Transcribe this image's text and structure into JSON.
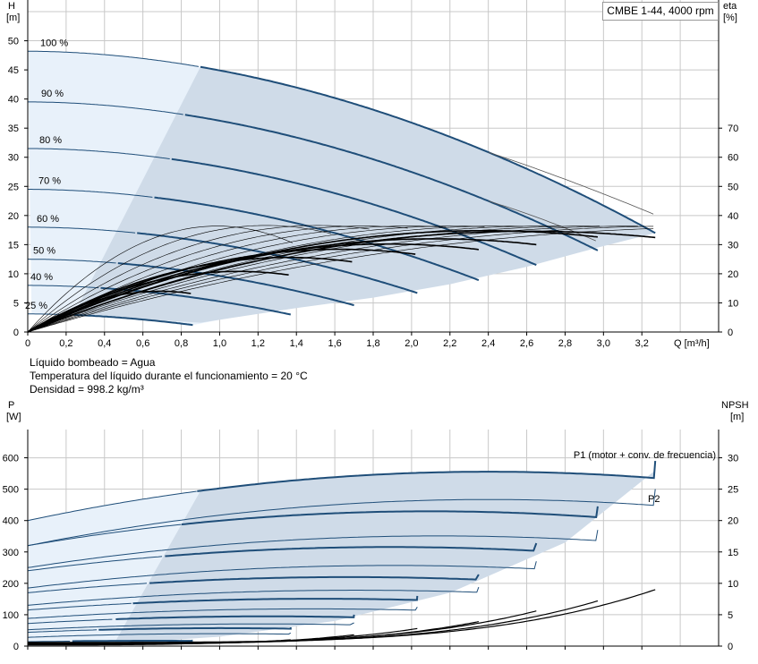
{
  "header": {
    "title": "CMBE 1-44, 4000 rpm"
  },
  "info": {
    "line1": "Líquido bombeado = Agua",
    "line2": "Temperatura del líquido durante el funcionamiento = 20 °C",
    "line3": "Densidad = 998.2 kg/m³"
  },
  "colors": {
    "curve_blue": "#1f4e79",
    "envelope_fill": "#cfdbe8",
    "light_fill": "#e8f1fa",
    "grid": "#c8c8c8",
    "eff_line": "#000000"
  },
  "chart_data": [
    {
      "type": "line",
      "name": "QH",
      "xlabel": "Q [m³/h]",
      "ylabel": "H\n[m]",
      "y2label": "eta\n[%]",
      "xlim": [
        0,
        3.6
      ],
      "ylim": [
        0,
        57
      ],
      "y2lim": [
        0,
        114
      ],
      "x_ticks": [
        0,
        0.2,
        0.4,
        0.6,
        0.8,
        1.0,
        1.2,
        1.4,
        1.6,
        1.8,
        2.0,
        2.2,
        2.4,
        2.6,
        2.8,
        3.0,
        3.2
      ],
      "x_tick_labels": [
        "0",
        "0,2",
        "0,4",
        "0,6",
        "0,8",
        "1,0",
        "1,2",
        "1,4",
        "1,6",
        "1,8",
        "2,0",
        "2,2",
        "2,4",
        "2,6",
        "2,8",
        "3,0",
        "3,2"
      ],
      "y_ticks": [
        0,
        5,
        10,
        15,
        20,
        25,
        30,
        35,
        40,
        45,
        50
      ],
      "y2_ticks": [
        0,
        10,
        20,
        30,
        40,
        50,
        60,
        70
      ],
      "grid": true,
      "speed_curves": [
        {
          "label": "100 %",
          "H0": 48.2,
          "Qmax": 3.27,
          "Hend": 17.0,
          "Qlight": 0.9
        },
        {
          "label": "90 %",
          "H0": 39.5,
          "Qmax": 2.97,
          "Hend": 14.0,
          "Qlight": 0.82
        },
        {
          "label": "80 %",
          "H0": 31.5,
          "Qmax": 2.65,
          "Hend": 11.5,
          "Qlight": 0.75
        },
        {
          "label": "70 %",
          "H0": 24.5,
          "Qmax": 2.35,
          "Hend": 8.9,
          "Qlight": 0.66
        },
        {
          "label": "60 %",
          "H0": 18.0,
          "Qmax": 2.03,
          "Hend": 6.7,
          "Qlight": 0.57
        },
        {
          "label": "50 %",
          "H0": 12.5,
          "Qmax": 1.7,
          "Hend": 4.6,
          "Qlight": 0.47
        },
        {
          "label": "40 %",
          "H0": 8.0,
          "Qmax": 1.37,
          "Hend": 3.0,
          "Qlight": 0.38
        },
        {
          "label": "25 %",
          "H0": 3.1,
          "Qmax": 0.86,
          "Hend": 1.2,
          "Qlight": 0.24
        }
      ],
      "light_curves": [
        {
          "H0": 48.2,
          "Qend": 3.27,
          "Hend": 13.5
        },
        {
          "H0": 39.5,
          "Qend": 2.97,
          "Hend": 12.0
        }
      ],
      "eta_thick": [
        {
          "Qend": 0.86,
          "eta_end": 11
        },
        {
          "Qend": 1.37,
          "eta_end": 17
        },
        {
          "Qend": 1.7,
          "eta_end": 21
        },
        {
          "Qend": 2.03,
          "eta_end": 23
        },
        {
          "Qend": 2.35,
          "eta_end": 24
        },
        {
          "Qend": 2.65,
          "eta_end": 25
        },
        {
          "Qend": 2.97,
          "eta_end": 27
        },
        {
          "Qend": 3.27,
          "eta_end": 26
        }
      ],
      "eta_thin_peaks": [
        {
          "Qpk": 0.62,
          "Hpk": 18.2
        },
        {
          "Qpk": 0.78,
          "Hpk": 18.3
        },
        {
          "Qpk": 0.95,
          "Hpk": 18.3
        },
        {
          "Qpk": 1.1,
          "Hpk": 18.2
        },
        {
          "Qpk": 1.25,
          "Hpk": 18.2
        },
        {
          "Qpk": 1.4,
          "Hpk": 18.2
        },
        {
          "Qpk": 1.55,
          "Hpk": 18.2
        },
        {
          "Qpk": 1.7,
          "Hpk": 18.2
        },
        {
          "Qpk": 1.85,
          "Hpk": 18.2
        },
        {
          "Qpk": 2.0,
          "Hpk": 18.2
        },
        {
          "Qpk": 2.15,
          "Hpk": 18.2
        },
        {
          "Qpk": 2.3,
          "Hpk": 18.0
        }
      ]
    },
    {
      "type": "line",
      "name": "P/NPSH",
      "ylabel": "P\n[W]",
      "y2label": "NPSH\n[m]",
      "xlim": [
        0,
        3.6
      ],
      "ylim": [
        0,
        690
      ],
      "y2lim": [
        0,
        34.5
      ],
      "y_ticks": [
        0,
        100,
        200,
        300,
        400,
        500,
        600
      ],
      "y2_ticks": [
        0,
        5,
        10,
        15,
        20,
        25,
        30
      ],
      "grid": true,
      "p1_label": "P1 (motor + conv. de frecuencia)",
      "p2_label": "P2",
      "p1_curves": [
        {
          "Qmax": 3.27,
          "P0": 400,
          "Pmid": 612,
          "Pend": 590
        },
        {
          "Qmax": 2.97,
          "P0": 320,
          "Pmid": 475,
          "Pend": 445
        },
        {
          "Qmax": 2.65,
          "P0": 240,
          "Pmid": 346,
          "Pend": 328
        },
        {
          "Qmax": 2.35,
          "P0": 170,
          "Pmid": 240,
          "Pend": 228
        },
        {
          "Qmax": 2.03,
          "P0": 115,
          "Pmid": 163,
          "Pend": 160
        },
        {
          "Qmax": 1.7,
          "P0": 72,
          "Pmid": 103,
          "Pend": 100
        },
        {
          "Qmax": 1.37,
          "P0": 44,
          "Pmid": 62,
          "Pend": 60
        },
        {
          "Qmax": 0.86,
          "P0": 14,
          "Pmid": 18,
          "Pend": 18
        }
      ],
      "p2_curves": [
        {
          "Qmax": 3.27,
          "P0": 320,
          "Pmid": 520,
          "Pend": 500
        },
        {
          "Qmax": 2.97,
          "P0": 250,
          "Pmid": 390,
          "Pend": 370
        },
        {
          "Qmax": 2.65,
          "P0": 185,
          "Pmid": 285,
          "Pend": 270
        },
        {
          "Qmax": 2.35,
          "P0": 130,
          "Pmid": 196,
          "Pend": 188
        },
        {
          "Qmax": 2.03,
          "P0": 88,
          "Pmid": 130,
          "Pend": 125
        },
        {
          "Qmax": 1.7,
          "P0": 52,
          "Pmid": 78,
          "Pend": 74
        },
        {
          "Qmax": 1.37,
          "P0": 28,
          "Pmid": 44,
          "Pend": 42
        },
        {
          "Qmax": 0.86,
          "P0": 8,
          "Pmid": 12,
          "Pend": 12
        }
      ],
      "npsh_curves": [
        {
          "Qmax": 3.27,
          "N0": 0.6,
          "Nend": 9.0
        },
        {
          "Qmax": 2.97,
          "N0": 0.5,
          "Nend": 7.2
        },
        {
          "Qmax": 2.65,
          "N0": 0.5,
          "Nend": 5.6
        },
        {
          "Qmax": 2.35,
          "N0": 0.4,
          "Nend": 3.9
        },
        {
          "Qmax": 2.03,
          "N0": 0.4,
          "Nend": 2.8
        },
        {
          "Qmax": 1.7,
          "N0": 0.3,
          "Nend": 1.8
        },
        {
          "Qmax": 1.37,
          "N0": 0.3,
          "Nend": 1.0
        },
        {
          "Qmax": 0.86,
          "N0": 0.2,
          "Nend": 0.4
        }
      ]
    }
  ]
}
